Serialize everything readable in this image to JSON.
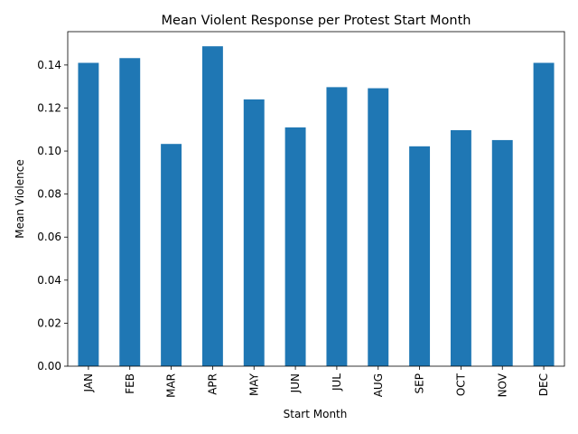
{
  "chart_data": {
    "type": "bar",
    "title": "Mean Violent Response per Protest Start Month",
    "xlabel": "Start Month",
    "ylabel": "Mean Violence",
    "categories": [
      "JAN",
      "FEB",
      "MAR",
      "APR",
      "MAY",
      "JUN",
      "JUL",
      "AUG",
      "SEP",
      "OCT",
      "NOV",
      "DEC"
    ],
    "values": [
      0.141,
      0.1432,
      0.1033,
      0.1487,
      0.124,
      0.111,
      0.1297,
      0.1292,
      0.1022,
      0.1097,
      0.1051,
      0.141
    ],
    "ylim": [
      0,
      0.1555
    ],
    "yticks": [
      0.0,
      0.02,
      0.04,
      0.06,
      0.08,
      0.1,
      0.12,
      0.14
    ],
    "ytick_labels": [
      "0.00",
      "0.02",
      "0.04",
      "0.06",
      "0.08",
      "0.10",
      "0.12",
      "0.14"
    ],
    "grid": false,
    "legend": "none",
    "bar_color": "#1f77b4"
  }
}
